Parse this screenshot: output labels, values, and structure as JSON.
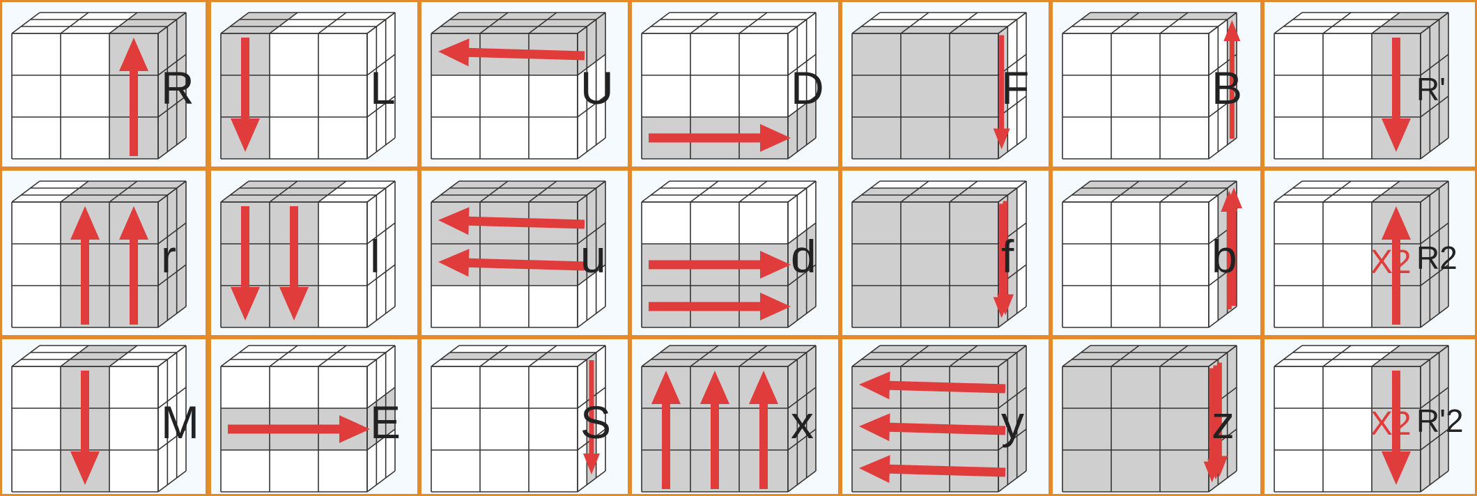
{
  "colors": {
    "border": "#e48a2a",
    "background": "#f5fafe",
    "highlight": "#cfcfcf",
    "arrow": "#e03c3c",
    "line": "#333333"
  },
  "rows": [
    [
      {
        "label": "R",
        "move": "R"
      },
      {
        "label": "L",
        "move": "L"
      },
      {
        "label": "U",
        "move": "U"
      },
      {
        "label": "D",
        "move": "D"
      },
      {
        "label": "F",
        "move": "F"
      },
      {
        "label": "B",
        "move": "B"
      },
      {
        "label": "R'",
        "move": "Rp"
      }
    ],
    [
      {
        "label": "r",
        "move": "r"
      },
      {
        "label": "l",
        "move": "l"
      },
      {
        "label": "u",
        "move": "u"
      },
      {
        "label": "d",
        "move": "d"
      },
      {
        "label": "f",
        "move": "f"
      },
      {
        "label": "b",
        "move": "b"
      },
      {
        "label": "R2",
        "move": "R2",
        "extra": "X2"
      }
    ],
    [
      {
        "label": "M",
        "move": "M"
      },
      {
        "label": "E",
        "move": "E"
      },
      {
        "label": "S",
        "move": "S"
      },
      {
        "label": "x",
        "move": "x"
      },
      {
        "label": "y",
        "move": "y"
      },
      {
        "label": "z",
        "move": "z"
      },
      {
        "label": "R'2",
        "move": "Rp2",
        "extra": "X2"
      }
    ]
  ]
}
